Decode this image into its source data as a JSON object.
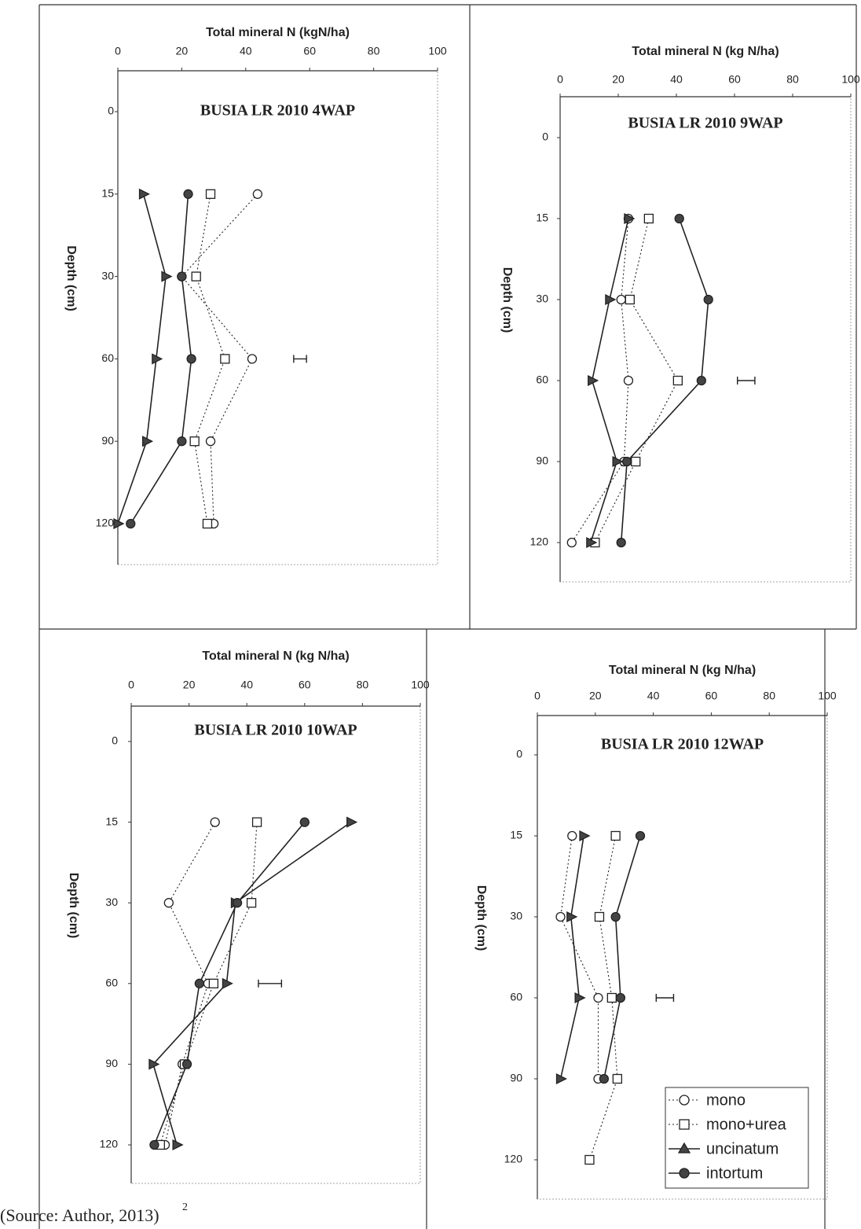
{
  "chart_data": [
    {
      "type": "line",
      "title": "BUSIA LR 2010 4WAP",
      "x_label": "Total mineral N (kgN/ha)",
      "y_label": "Depth (cm)",
      "xlim": [
        0,
        100
      ],
      "xticks": [
        0,
        20,
        40,
        60,
        80,
        100
      ],
      "categories": [
        "0",
        "15",
        "30",
        "60",
        "90",
        "120"
      ],
      "series": [
        {
          "name": "mono",
          "color": "#222222",
          "marker": "open-circle",
          "dash": true,
          "values": [
            null,
            43.7,
            20,
            42,
            29,
            30
          ]
        },
        {
          "name": "mono+urea",
          "color": "#222222",
          "marker": "open-square",
          "dash": true,
          "values": [
            null,
            29,
            24.5,
            33.5,
            24,
            28
          ]
        },
        {
          "name": "uncinatum",
          "color": "#222222",
          "marker": "triangle",
          "dash": false,
          "values": [
            null,
            8,
            15,
            12,
            9,
            0
          ]
        },
        {
          "name": "intortum",
          "color": "#222222",
          "marker": "filled-circle",
          "dash": false,
          "values": [
            null,
            22,
            20,
            23,
            20,
            4
          ]
        }
      ],
      "lsd_bar": {
        "center": 57,
        "half_width": 2
      }
    },
    {
      "type": "line",
      "title": "BUSIA LR 2010 9WAP",
      "x_label": "Total mineral N (kg N/ha)",
      "y_label": "Depth (cm)",
      "xlim": [
        0,
        100
      ],
      "xticks": [
        0,
        20,
        40,
        60,
        80,
        100
      ],
      "categories": [
        "0",
        "15",
        "30",
        "60",
        "90",
        "120"
      ],
      "series": [
        {
          "name": "mono",
          "color": "#222222",
          "marker": "open-circle",
          "dash": true,
          "values": [
            null,
            23.5,
            21,
            23.5,
            22,
            4
          ]
        },
        {
          "name": "mono+urea",
          "color": "#222222",
          "marker": "open-square",
          "dash": true,
          "values": [
            null,
            30.5,
            24,
            40.5,
            26,
            12
          ]
        },
        {
          "name": "uncinatum",
          "color": "#222222",
          "marker": "triangle",
          "dash": false,
          "values": [
            null,
            23.5,
            17,
            11,
            19.5,
            10.5
          ]
        },
        {
          "name": "intortum",
          "color": "#222222",
          "marker": "filled-circle",
          "dash": false,
          "values": [
            null,
            41,
            51,
            48.6,
            23,
            21
          ]
        }
      ],
      "lsd_bar": {
        "center": 64,
        "half_width": 3
      }
    },
    {
      "type": "line",
      "title": "BUSIA LR 2010 10WAP",
      "x_label": "Total mineral N (kg N/ha)",
      "y_label": "Depth (cm)",
      "xlim": [
        0,
        100
      ],
      "xticks": [
        0,
        20,
        40,
        60,
        80,
        100
      ],
      "categories": [
        "0",
        "15",
        "30",
        "60",
        "90",
        "120"
      ],
      "series": [
        {
          "name": "mono",
          "color": "#222222",
          "marker": "open-circle",
          "dash": true,
          "values": [
            null,
            29,
            13,
            26.6,
            17.7,
            11.7
          ]
        },
        {
          "name": "mono+urea",
          "color": "#222222",
          "marker": "open-square",
          "dash": true,
          "values": [
            null,
            43.5,
            41.6,
            28.5,
            18.5,
            10
          ]
        },
        {
          "name": "uncinatum",
          "color": "#222222",
          "marker": "triangle",
          "dash": false,
          "values": [
            null,
            76,
            36,
            33,
            7.6,
            15.8
          ]
        },
        {
          "name": "intortum",
          "color": "#222222",
          "marker": "filled-circle",
          "dash": false,
          "values": [
            null,
            60,
            36.7,
            23.6,
            19.3,
            8
          ]
        }
      ],
      "lsd_bar": {
        "center": 48,
        "half_width": 4
      }
    },
    {
      "type": "line",
      "title": "BUSIA LR 2010 12WAP",
      "x_label": "Total mineral N (kg N/ha)",
      "y_label": "Depth (cm)",
      "xlim": [
        0,
        100
      ],
      "xticks": [
        0,
        20,
        40,
        60,
        80,
        100
      ],
      "categories": [
        "0",
        "15",
        "30",
        "60",
        "90",
        "120"
      ],
      "series": [
        {
          "name": "mono",
          "color": "#222222",
          "marker": "open-circle",
          "dash": true,
          "values": [
            null,
            12,
            8,
            21,
            21,
            null
          ]
        },
        {
          "name": "mono+urea",
          "color": "#222222",
          "marker": "open-square",
          "dash": true,
          "values": [
            null,
            27,
            21.4,
            25.7,
            27.6,
            18
          ]
        },
        {
          "name": "uncinatum",
          "color": "#222222",
          "marker": "triangle",
          "dash": false,
          "values": [
            null,
            16,
            11.6,
            14.4,
            8,
            null
          ]
        },
        {
          "name": "intortum",
          "color": "#222222",
          "marker": "filled-circle",
          "dash": false,
          "values": [
            null,
            35.5,
            27,
            28.7,
            23,
            null
          ]
        }
      ],
      "lsd_bar": {
        "center": 44,
        "half_width": 3
      },
      "legend": "lower right"
    }
  ],
  "caption": "(Source: Author, 2013)",
  "caption_superscript": "2"
}
